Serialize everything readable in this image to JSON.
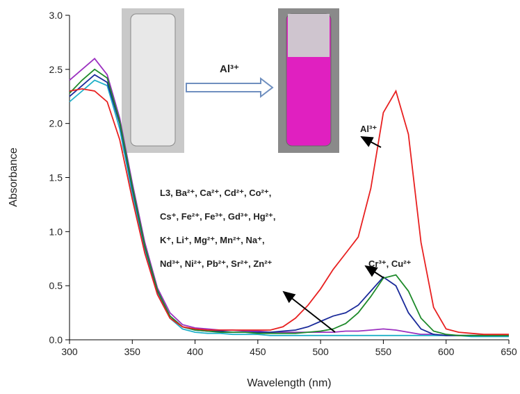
{
  "chart_data": {
    "type": "line",
    "x": [
      300,
      310,
      320,
      330,
      340,
      350,
      360,
      370,
      380,
      390,
      400,
      410,
      420,
      430,
      440,
      450,
      460,
      470,
      480,
      490,
      500,
      510,
      520,
      530,
      540,
      550,
      560,
      570,
      580,
      590,
      600,
      610,
      620,
      630,
      640,
      650
    ],
    "series": [
      {
        "color": "#9b30c0",
        "values": [
          2.4,
          2.5,
          2.6,
          2.45,
          2.05,
          1.45,
          0.9,
          0.48,
          0.25,
          0.14,
          0.11,
          0.1,
          0.09,
          0.09,
          0.08,
          0.08,
          0.07,
          0.07,
          0.07,
          0.07,
          0.07,
          0.07,
          0.08,
          0.08,
          0.09,
          0.1,
          0.09,
          0.07,
          0.05,
          0.05,
          0.04,
          0.04,
          0.04,
          0.04,
          0.04,
          0.04
        ]
      },
      {
        "color": "#20b0c8",
        "values": [
          2.2,
          2.3,
          2.4,
          2.35,
          1.95,
          1.35,
          0.82,
          0.42,
          0.2,
          0.1,
          0.07,
          0.06,
          0.06,
          0.05,
          0.05,
          0.05,
          0.04,
          0.04,
          0.04,
          0.04,
          0.04,
          0.04,
          0.04,
          0.04,
          0.04,
          0.04,
          0.04,
          0.04,
          0.04,
          0.04,
          0.04,
          0.04,
          0.03,
          0.03,
          0.03,
          0.03
        ]
      },
      {
        "color": "#1a2a9a",
        "values": [
          2.25,
          2.35,
          2.45,
          2.38,
          2.0,
          1.4,
          0.86,
          0.45,
          0.22,
          0.12,
          0.09,
          0.08,
          0.08,
          0.07,
          0.07,
          0.07,
          0.07,
          0.08,
          0.09,
          0.12,
          0.17,
          0.22,
          0.25,
          0.32,
          0.45,
          0.58,
          0.5,
          0.25,
          0.1,
          0.05,
          0.04,
          0.04,
          0.04,
          0.04,
          0.04,
          0.04
        ]
      },
      {
        "color": "#1e8a2a",
        "values": [
          2.28,
          2.4,
          2.5,
          2.42,
          2.02,
          1.42,
          0.87,
          0.46,
          0.22,
          0.12,
          0.09,
          0.08,
          0.07,
          0.07,
          0.07,
          0.06,
          0.06,
          0.06,
          0.06,
          0.07,
          0.08,
          0.1,
          0.15,
          0.25,
          0.4,
          0.57,
          0.6,
          0.45,
          0.2,
          0.08,
          0.05,
          0.04,
          0.04,
          0.04,
          0.04,
          0.04
        ]
      },
      {
        "color": "#e82020",
        "values": [
          2.3,
          2.32,
          2.3,
          2.2,
          1.85,
          1.3,
          0.8,
          0.42,
          0.2,
          0.12,
          0.1,
          0.09,
          0.09,
          0.09,
          0.09,
          0.09,
          0.09,
          0.12,
          0.2,
          0.32,
          0.47,
          0.65,
          0.8,
          0.95,
          1.4,
          2.1,
          2.3,
          1.9,
          0.9,
          0.3,
          0.1,
          0.07,
          0.06,
          0.05,
          0.05,
          0.05
        ]
      }
    ],
    "xlim": [
      300,
      650
    ],
    "ylim": [
      0,
      3
    ],
    "xticks": [
      300,
      350,
      400,
      450,
      500,
      550,
      600,
      650
    ],
    "yticks": [
      {
        "value": 0,
        "label": "0.0"
      },
      0.5,
      {
        "value": 1,
        "label": "1.0"
      },
      1.5,
      {
        "value": 2,
        "label": "2.0"
      },
      2.5,
      {
        "value": 3,
        "label": "3.0"
      }
    ],
    "x_label": "Wavelength (nm)",
    "y_label": "Absorbance",
    "inset_label": "Al³⁺",
    "annotations": [
      "Al³⁺",
      "L3, Ba²⁺, Ca²⁺, Cd²⁺, Co²⁺,",
      "Cs⁺, Fe²⁺, Fe³⁺, Gd³⁺, Hg²⁺,",
      "K⁺, Li⁺, Mg²⁺, Mn²⁺, Na⁺,",
      "Nd³⁺, Ni²⁺, Pb²⁺, Sr²⁺, Zn²⁺",
      "Cr³⁺, Cu²⁺"
    ]
  }
}
